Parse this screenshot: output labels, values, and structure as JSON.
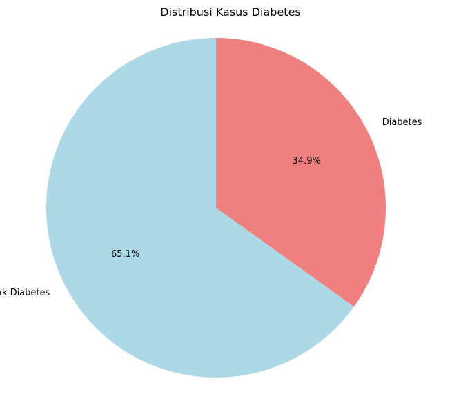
{
  "chart_data": {
    "type": "pie",
    "title": "Distribusi Kasus Diabetes",
    "categories": [
      "Tidak Diabetes",
      "Diabetes"
    ],
    "values": [
      65.1,
      34.9
    ],
    "value_labels": [
      "65.1%",
      "34.9%"
    ],
    "colors": [
      "#add8e6",
      "#f08080"
    ],
    "legend": "none"
  }
}
